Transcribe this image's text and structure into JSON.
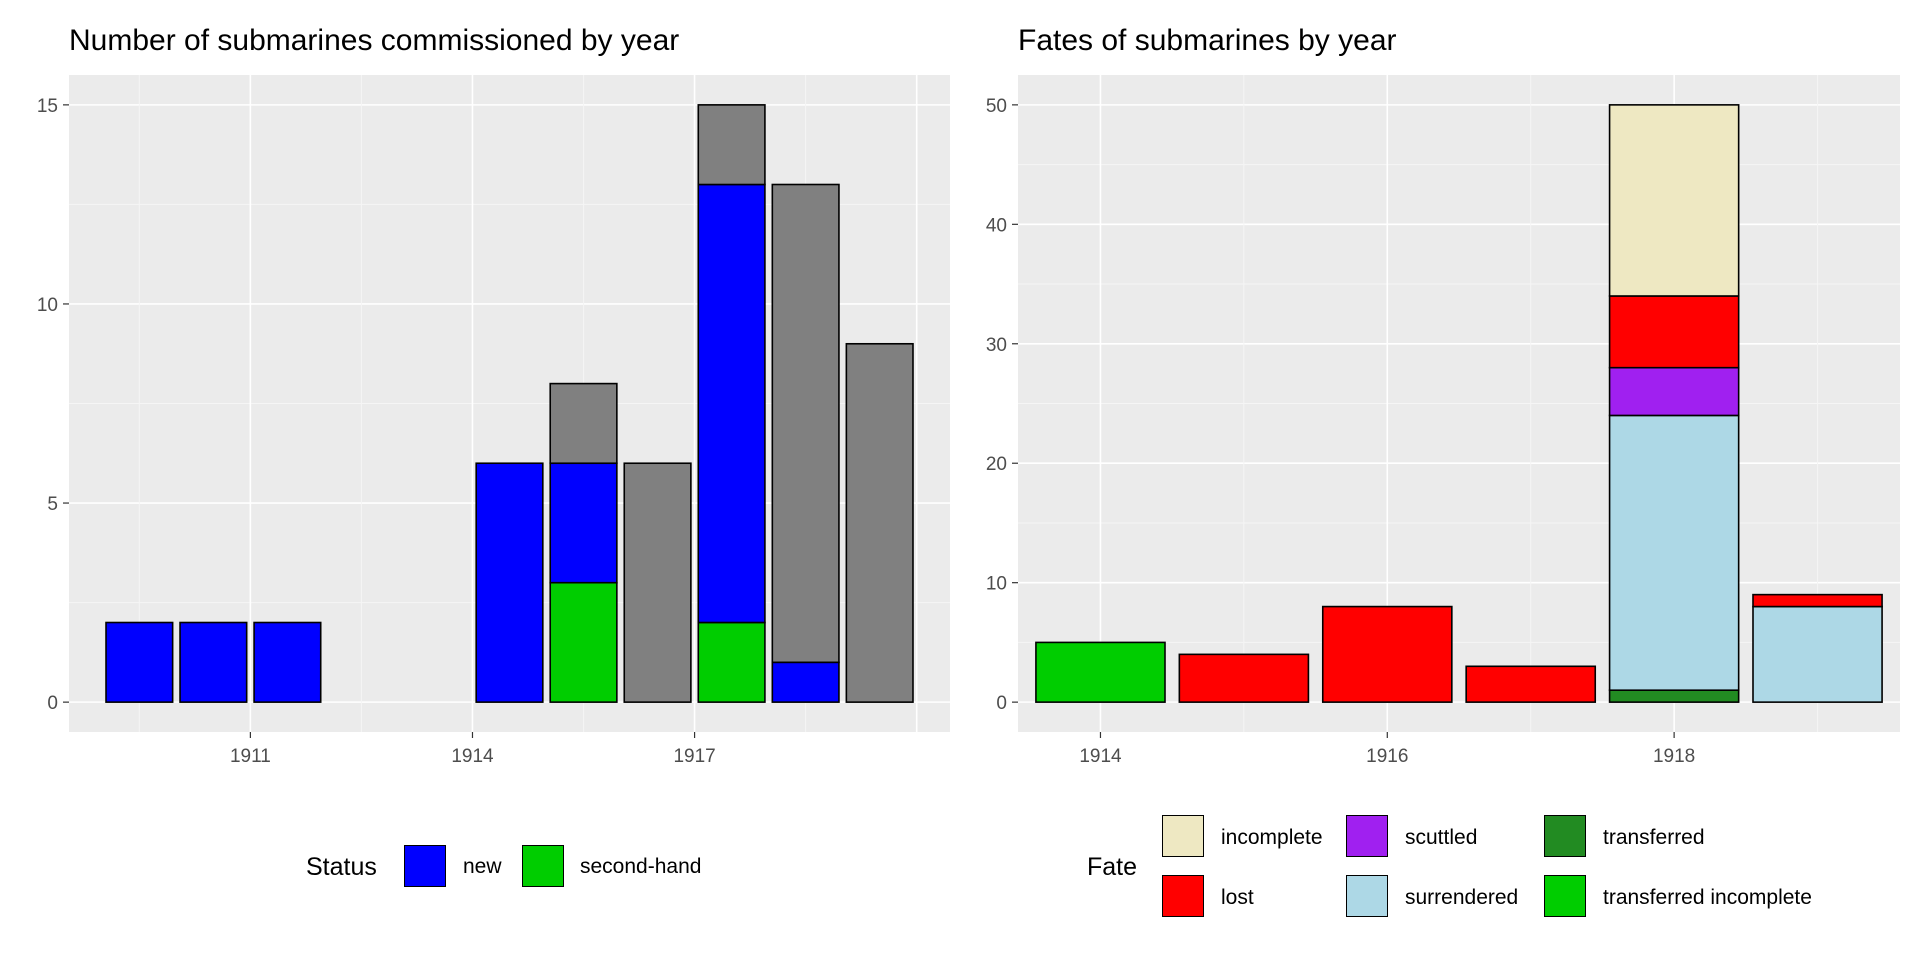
{
  "chart_data": [
    {
      "type": "bar",
      "stacked": true,
      "title": "Number of submarines commissioned by year",
      "x_tick_labels": [
        "1911",
        "1914",
        "1917"
      ],
      "x": [
        1909.5,
        1910.5,
        1911.5,
        1914.5,
        1915.5,
        1916.5,
        1917.5,
        1918.5,
        1919.5
      ],
      "series": [
        {
          "name": "",
          "color": "#808080",
          "values": [
            0,
            0,
            0,
            0,
            2,
            6,
            2,
            12,
            9
          ]
        },
        {
          "name": "new",
          "color": "#0000FF",
          "values": [
            2,
            2,
            2,
            6,
            3,
            0,
            11,
            1,
            0
          ]
        },
        {
          "name": "second-hand",
          "color": "#00CD00",
          "values": [
            0,
            0,
            0,
            0,
            3,
            0,
            2,
            0,
            0
          ]
        }
      ],
      "y_ticks": [
        0,
        5,
        10,
        15
      ],
      "ylim": [
        -0.75,
        15.75
      ],
      "legend": {
        "title": "Status",
        "position": "bottom",
        "entries": [
          "new",
          "second-hand"
        ]
      }
    },
    {
      "type": "bar",
      "stacked": true,
      "title": "Fates of submarines by year",
      "x_tick_labels": [
        "1914",
        "1916",
        "1918"
      ],
      "x": [
        1914,
        1915,
        1916,
        1917,
        1918,
        1919
      ],
      "series": [
        {
          "name": "incomplete",
          "color": "#EEE8C2",
          "values": [
            0,
            0,
            0,
            0,
            16,
            0
          ]
        },
        {
          "name": "lost",
          "color": "#FF0000",
          "values": [
            0,
            4,
            8,
            3,
            6,
            1
          ]
        },
        {
          "name": "scuttled",
          "color": "#A020F0",
          "values": [
            0,
            0,
            0,
            0,
            4,
            0
          ]
        },
        {
          "name": "surrendered",
          "color": "#ADD8E6",
          "values": [
            0,
            0,
            0,
            0,
            23,
            8
          ]
        },
        {
          "name": "transferred",
          "color": "#228B22",
          "values": [
            0,
            0,
            0,
            0,
            1,
            0
          ]
        },
        {
          "name": "transferred incomplete",
          "color": "#00CD00",
          "values": [
            5,
            0,
            0,
            0,
            0,
            0
          ]
        }
      ],
      "y_ticks": [
        0,
        10,
        20,
        30,
        40,
        50
      ],
      "ylim": [
        -2.5,
        52.5
      ],
      "legend": {
        "title": "Fate",
        "position": "bottom",
        "entries": [
          "incomplete",
          "scuttled",
          "transferred",
          "lost",
          "surrendered",
          "transferred incomplete"
        ]
      }
    }
  ]
}
